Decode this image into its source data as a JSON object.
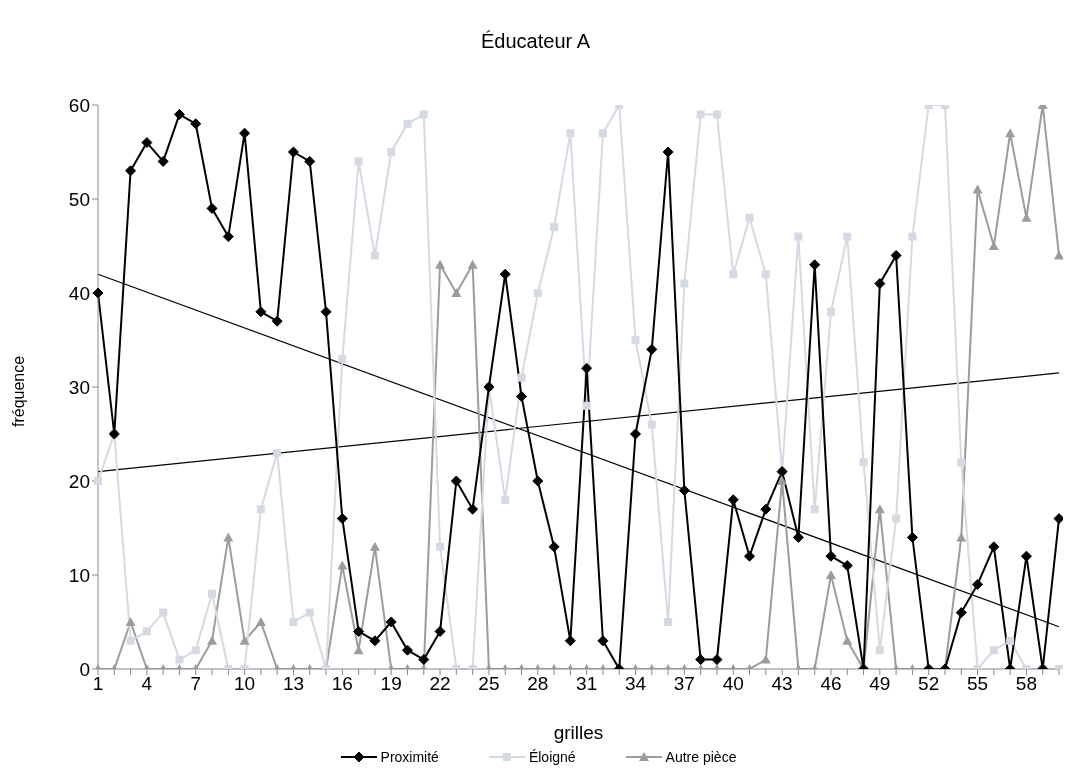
{
  "chart_data": {
    "type": "line",
    "title": "Éducateur A",
    "xlabel": "grilles",
    "ylabel": "fréquence",
    "categories": [
      "1",
      null,
      null,
      "4",
      null,
      null,
      "7",
      null,
      null,
      "10",
      null,
      null,
      "13",
      null,
      null,
      "16",
      null,
      null,
      "19",
      null,
      null,
      "22",
      null,
      null,
      "25",
      null,
      null,
      "28",
      null,
      null,
      "31",
      null,
      null,
      "34",
      null,
      null,
      "37",
      null,
      null,
      "40",
      null,
      null,
      "43",
      null,
      null,
      "46",
      null,
      null,
      "49",
      null,
      null,
      "52",
      null,
      null,
      "55",
      null,
      null,
      "58",
      null,
      null
    ],
    "ylim": [
      0,
      60
    ],
    "yticks": [
      0,
      10,
      20,
      30,
      40,
      50,
      60
    ],
    "grid": false,
    "legend": "bottom",
    "line_style": "solid",
    "series": [
      {
        "name": "Proximité",
        "color": "#000000",
        "marker": "diamond",
        "values": [
          40,
          25,
          53,
          56,
          54,
          59,
          58,
          49,
          46,
          57,
          38,
          37,
          55,
          54,
          38,
          16,
          4,
          3,
          5,
          2,
          1,
          4,
          20,
          17,
          30,
          42,
          29,
          20,
          13,
          3,
          32,
          3,
          0,
          25,
          34,
          55,
          19,
          1,
          1,
          18,
          12,
          17,
          21,
          14,
          43,
          12,
          11,
          0,
          41,
          44,
          14,
          0,
          0,
          6,
          9,
          13,
          0,
          12,
          0,
          16
        ]
      },
      {
        "name": "Éloigné",
        "color": "#d5d9e2",
        "marker": "square",
        "values": [
          20,
          25,
          3,
          4,
          6,
          1,
          2,
          8,
          0,
          0,
          17,
          23,
          5,
          6,
          0,
          33,
          54,
          44,
          55,
          58,
          59,
          13,
          0,
          0,
          30,
          18,
          31,
          40,
          47,
          57,
          28,
          57,
          60,
          35,
          26,
          5,
          41,
          59,
          59,
          42,
          48,
          42,
          21,
          46,
          17,
          38,
          46,
          22,
          2,
          16,
          46,
          60,
          60,
          22,
          0,
          2,
          3,
          0,
          0,
          0
        ]
      },
      {
        "name": "Autre pièce",
        "color": "#9c9c9c",
        "marker": "triangle",
        "values": [
          0,
          0,
          5,
          0,
          0,
          0,
          0,
          3,
          14,
          3,
          5,
          0,
          0,
          0,
          0,
          11,
          2,
          13,
          0,
          0,
          0,
          43,
          40,
          43,
          0,
          0,
          0,
          0,
          0,
          0,
          0,
          0,
          0,
          0,
          0,
          0,
          0,
          0,
          0,
          0,
          0,
          1,
          20,
          0,
          0,
          10,
          3,
          0,
          17,
          0,
          0,
          0,
          0,
          14,
          51,
          45,
          57,
          48,
          60,
          44
        ]
      },
      {
        "color": "#000000",
        "marker": "none",
        "values": [
          42,
          null,
          null,
          null,
          null,
          null,
          null,
          null,
          null,
          null,
          null,
          null,
          null,
          null,
          null,
          null,
          null,
          null,
          null,
          null,
          null,
          null,
          null,
          null,
          null,
          null,
          null,
          null,
          null,
          null,
          null,
          null,
          null,
          null,
          null,
          null,
          null,
          null,
          null,
          null,
          null,
          null,
          null,
          null,
          null,
          null,
          null,
          null,
          null,
          null,
          null,
          null,
          null,
          null,
          null,
          null,
          null,
          null,
          null,
          4.5
        ]
      },
      {
        "color": "#000000",
        "marker": "none",
        "values": [
          21,
          null,
          null,
          null,
          null,
          null,
          null,
          null,
          null,
          null,
          null,
          null,
          null,
          null,
          null,
          null,
          null,
          null,
          null,
          null,
          null,
          null,
          null,
          null,
          null,
          null,
          null,
          null,
          null,
          null,
          null,
          null,
          null,
          null,
          null,
          null,
          null,
          null,
          null,
          null,
          null,
          null,
          null,
          null,
          null,
          null,
          null,
          null,
          null,
          null,
          null,
          null,
          null,
          null,
          null,
          null,
          null,
          null,
          null,
          31.5
        ]
      }
    ]
  }
}
